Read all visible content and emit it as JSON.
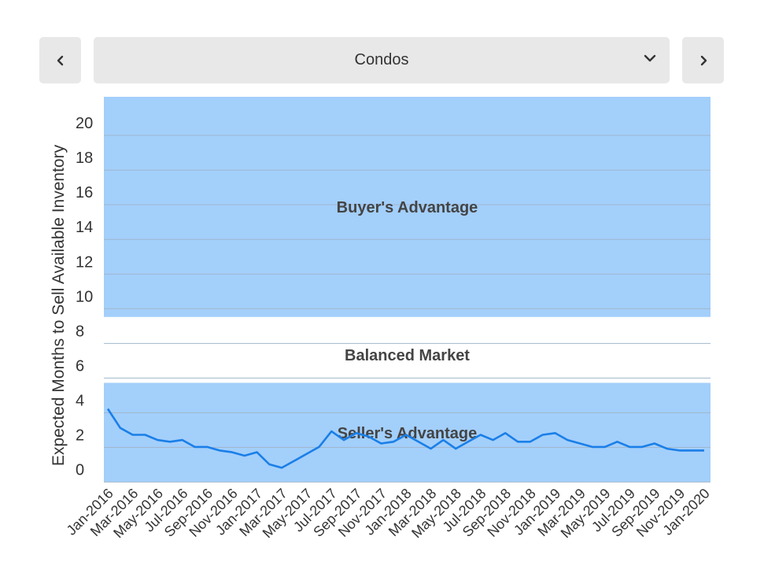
{
  "selector": {
    "value": "Condos"
  },
  "colors": {
    "band": "#a3cffb",
    "line": "#1a7fe8",
    "grid": "#9fb7cc"
  },
  "chart_data": {
    "type": "line",
    "title": "",
    "xlabel": "",
    "ylabel": "Expected Months to Sell Available Inventory",
    "ylim": [
      -0.7,
      21.5
    ],
    "yticks": [
      0,
      2,
      4,
      6,
      8,
      10,
      12,
      14,
      16,
      18,
      20
    ],
    "grid": true,
    "bands": [
      {
        "label": "Buyer's Advantage",
        "from": 8.8,
        "to": 21.5,
        "filled": true
      },
      {
        "label": "Balanced Market",
        "from": 5,
        "to": 8.8,
        "filled": false
      },
      {
        "label": "Seller's Advantage",
        "from": -0.7,
        "to": 5,
        "filled": true
      }
    ],
    "xtick_labels": [
      "Jan-2016",
      "Mar-2016",
      "May-2016",
      "Jul-2016",
      "Sep-2016",
      "Nov-2016",
      "Jan-2017",
      "Mar-2017",
      "May-2017",
      "Jul-2017",
      "Sep-2017",
      "Nov-2017",
      "Jan-2018",
      "Mar-2018",
      "May-2018",
      "Jul-2018",
      "Sep-2018",
      "Nov-2018",
      "Jan-2019",
      "Mar-2019",
      "May-2019",
      "Jul-2019",
      "Sep-2019",
      "Nov-2019",
      "Jan-2020"
    ],
    "series": [
      {
        "x": [
          "Jan-2016",
          "Feb-2016",
          "Mar-2016",
          "Apr-2016",
          "May-2016",
          "Jun-2016",
          "Jul-2016",
          "Aug-2016",
          "Sep-2016",
          "Oct-2016",
          "Nov-2016",
          "Dec-2016",
          "Jan-2017",
          "Feb-2017",
          "Mar-2017",
          "Apr-2017",
          "May-2017",
          "Jun-2017",
          "Jul-2017",
          "Aug-2017",
          "Sep-2017",
          "Oct-2017",
          "Nov-2017",
          "Dec-2017",
          "Jan-2018",
          "Feb-2018",
          "Mar-2018",
          "Apr-2018",
          "May-2018",
          "Jun-2018",
          "Jul-2018",
          "Aug-2018",
          "Sep-2018",
          "Oct-2018",
          "Nov-2018",
          "Dec-2018",
          "Jan-2019",
          "Feb-2019",
          "Mar-2019",
          "Apr-2019",
          "May-2019",
          "Jun-2019",
          "Jul-2019",
          "Aug-2019",
          "Sep-2019",
          "Oct-2019",
          "Nov-2019",
          "Dec-2019",
          "Jan-2020"
        ],
        "values": [
          3.5,
          2.4,
          2.0,
          2.0,
          1.7,
          1.6,
          1.7,
          1.3,
          1.3,
          1.1,
          1.0,
          0.8,
          1.0,
          0.3,
          0.1,
          0.5,
          0.9,
          1.3,
          2.2,
          1.7,
          2.1,
          1.9,
          1.5,
          1.6,
          2.0,
          1.6,
          1.2,
          1.7,
          1.2,
          1.6,
          2.0,
          1.7,
          2.1,
          1.6,
          1.6,
          2.0,
          2.1,
          1.7,
          1.5,
          1.3,
          1.3,
          1.6,
          1.3,
          1.3,
          1.5,
          1.2,
          1.1,
          1.1,
          1.1
        ]
      }
    ]
  }
}
